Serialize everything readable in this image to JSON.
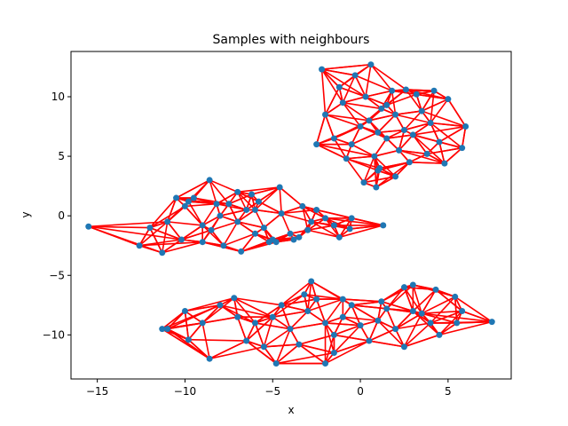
{
  "chart_data": {
    "type": "scatter",
    "title": "Samples with neighbours",
    "xlabel": "x",
    "ylabel": "y",
    "xlim": [
      -16.5,
      8.6
    ],
    "ylim": [
      -13.7,
      13.8
    ],
    "x_ticks": [
      -15,
      -10,
      -5,
      0,
      5
    ],
    "y_ticks": [
      -10,
      -5,
      0,
      5,
      10
    ],
    "x_tick_labels": [
      "−15",
      "−10",
      "−5",
      "0",
      "5"
    ],
    "y_tick_labels": [
      "−10",
      "−5",
      "0",
      "5",
      "10"
    ],
    "grid": false,
    "legend": "none",
    "colors": {
      "points": "#1f77b4",
      "edges": "#ff0000"
    },
    "series": [
      {
        "x": [
          0.0,
          0.5,
          1.0,
          1.5,
          2.0,
          2.5,
          3.0,
          -0.5,
          1.2,
          2.2,
          0.3,
          -1.0,
          1.8,
          3.5,
          4.0,
          0.8,
          -2.0,
          -1.5,
          2.8,
          4.5,
          5.0,
          1.0,
          -0.8,
          3.2,
          0.2,
          2.0,
          -2.5,
          5.8,
          6.0,
          4.8,
          3.8,
          -1.2,
          0.6,
          1.5,
          2.6,
          -0.3,
          4.2,
          -2.2,
          0.9,
          1.1
        ],
        "y": [
          7.5,
          8.0,
          7.0,
          6.5,
          8.5,
          7.2,
          6.8,
          6.0,
          9.0,
          5.5,
          10.0,
          9.5,
          10.5,
          8.8,
          7.8,
          5.0,
          8.5,
          6.5,
          4.5,
          6.2,
          9.8,
          3.8,
          4.8,
          10.2,
          2.8,
          3.3,
          6.0,
          5.7,
          7.5,
          4.4,
          5.2,
          10.8,
          12.7,
          9.3,
          10.6,
          11.8,
          10.5,
          12.3,
          2.4,
          4.0
        ]
      },
      {
        "x": [
          -7.0,
          -6.5,
          -8.0,
          -5.5,
          -9.0,
          -6.0,
          -7.5,
          -10.0,
          -4.5,
          -3.5,
          -8.5,
          -11.0,
          -12.0,
          -5.0,
          -4.0,
          -2.5,
          -1.5,
          -9.5,
          -7.0,
          -6.8,
          -12.6,
          -11.3,
          -10.2,
          -8.6,
          -5.8,
          -3.0,
          -2.0,
          -1.2,
          -0.5,
          -0.6,
          -4.8,
          -6.2,
          -9.0,
          -10.5,
          -7.8,
          -8.2,
          -3.8,
          -5.2,
          -6.0,
          -9.8,
          -15.5,
          -4.6,
          1.3,
          -2.8,
          -3.3
        ],
        "y": [
          -0.5,
          0.5,
          0.0,
          -1.0,
          -0.8,
          -1.5,
          1.0,
          0.8,
          0.2,
          -1.8,
          -1.2,
          -0.5,
          -1.0,
          -2.0,
          -1.5,
          0.5,
          -0.8,
          1.5,
          2.0,
          -3.0,
          -2.5,
          -3.1,
          -2.0,
          3.0,
          1.2,
          -1.2,
          -0.2,
          -1.8,
          -0.2,
          -1.1,
          -2.2,
          1.8,
          -2.2,
          1.5,
          -2.5,
          1.0,
          -2.0,
          -2.2,
          0.5,
          1.2,
          -0.9,
          2.4,
          -0.8,
          -0.5,
          0.8
        ]
      },
      {
        "x": [
          -6.0,
          -5.0,
          -4.0,
          -3.0,
          -2.0,
          -1.0,
          0.0,
          1.0,
          2.0,
          3.0,
          4.0,
          -7.0,
          -8.0,
          -9.0,
          -10.0,
          -11.0,
          -6.5,
          -5.5,
          -4.5,
          -3.5,
          -2.5,
          -1.5,
          -0.5,
          0.5,
          1.5,
          2.5,
          3.5,
          4.5,
          5.5,
          5.8,
          -8.6,
          -4.8,
          -2.0,
          2.5,
          3.0,
          -2.8,
          -9.8,
          -11.3,
          -7.2,
          -3.2,
          -1.0,
          1.2,
          4.3,
          5.4,
          -1.5,
          7.5
        ],
        "y": [
          -9.0,
          -8.5,
          -9.5,
          -8.0,
          -9.0,
          -8.5,
          -9.2,
          -8.8,
          -9.5,
          -8.0,
          -9.0,
          -8.5,
          -7.5,
          -9.0,
          -8.0,
          -9.5,
          -10.5,
          -11.0,
          -7.5,
          -10.8,
          -7.0,
          -10.0,
          -7.5,
          -10.5,
          -7.8,
          -11.0,
          -8.2,
          -10.0,
          -9.0,
          -8.0,
          -12.0,
          -12.4,
          -12.4,
          -6.0,
          -5.8,
          -5.5,
          -10.4,
          -9.5,
          -6.9,
          -6.6,
          -7.0,
          -7.2,
          -6.2,
          -6.8,
          -11.5,
          -8.9
        ]
      }
    ]
  }
}
